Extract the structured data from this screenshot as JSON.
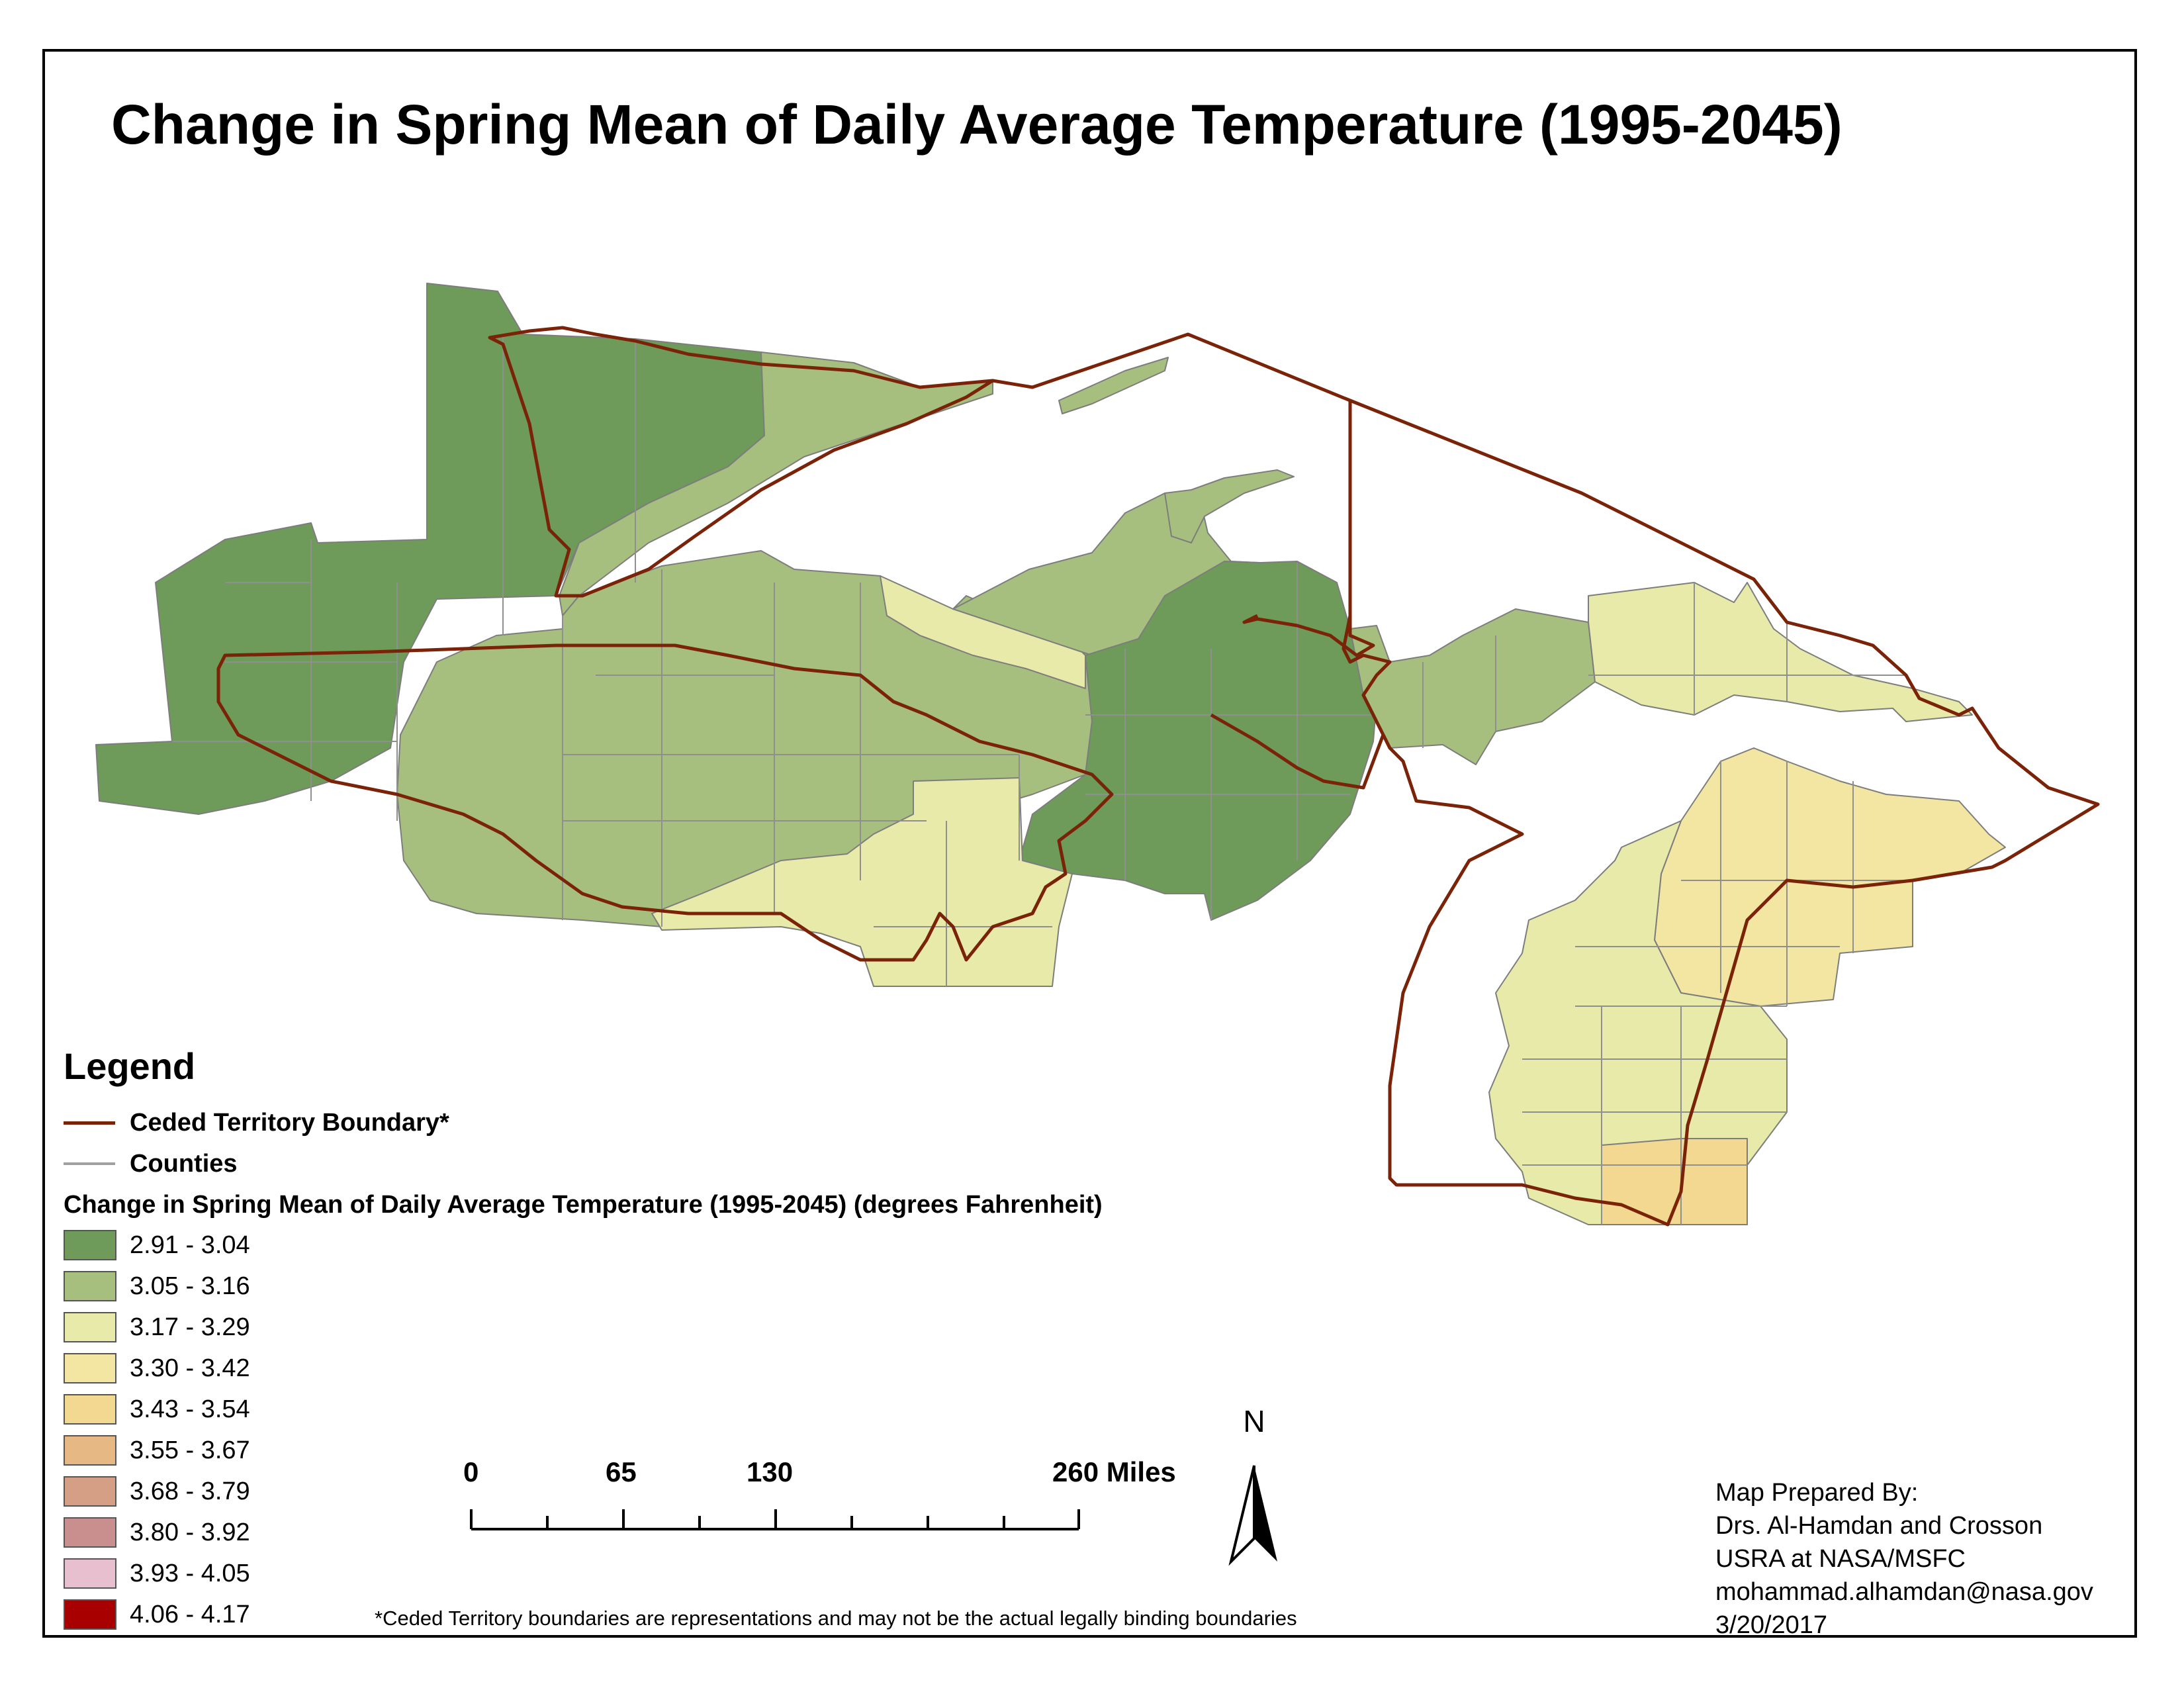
{
  "title": "Change in Spring Mean of Daily Average Temperature (1995-2045)",
  "legend": {
    "heading": "Legend",
    "ceded_label": "Ceded Territory Boundary*",
    "counties_label": "Counties",
    "ramp_title": "Change in Spring Mean of Daily Average Temperature (1995-2045) (degrees Fahrenheit)",
    "classes": [
      {
        "label": "2.91 - 3.04",
        "color": "#6e9a5a"
      },
      {
        "label": "3.05 - 3.16",
        "color": "#a7bf7e"
      },
      {
        "label": "3.17 - 3.29",
        "color": "#e8eaa9"
      },
      {
        "label": "3.30 - 3.42",
        "color": "#f2e6a2"
      },
      {
        "label": "3.43 - 3.54",
        "color": "#f3d892"
      },
      {
        "label": "3.55 - 3.67",
        "color": "#e6b884"
      },
      {
        "label": "3.68 - 3.79",
        "color": "#d49f84"
      },
      {
        "label": "3.80 - 3.92",
        "color": "#c98f8f"
      },
      {
        "label": "3.93 - 4.05",
        "color": "#e8bfcf"
      },
      {
        "label": "4.06 - 4.17",
        "color": "#a80000"
      }
    ]
  },
  "colors": {
    "ceded_boundary": "#7a2308",
    "county_lines": "#8f8f8f"
  },
  "scale_bar": {
    "labels": [
      "0",
      "65",
      "130",
      "260 Miles"
    ]
  },
  "north_arrow": {
    "label": "N",
    "icon": "north-arrow-icon"
  },
  "credits": {
    "line1": "Map Prepared By:",
    "line2": "Drs. Al-Hamdan and Crosson",
    "line3": "USRA at NASA/MSFC",
    "line4": "mohammad.alhamdan@nasa.gov",
    "line5": "3/20/2017"
  },
  "footnote": "*Ceded Territory boundaries are representations and may not be the actual legally binding boundaries"
}
